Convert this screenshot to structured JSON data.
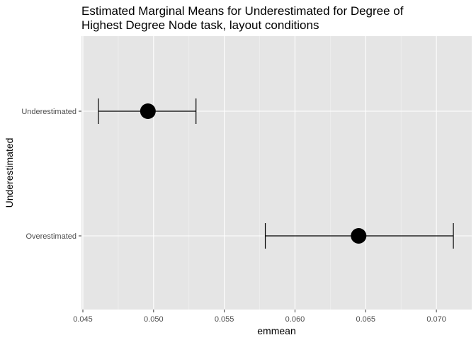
{
  "chart_data": {
    "type": "scatter",
    "title_lines": [
      "Estimated Marginal Means for Underestimated for Degree of",
      "Highest Degree Node task, layout conditions"
    ],
    "xlabel": "emmean",
    "ylabel": "Underestimated",
    "xlim": [
      0.0449,
      0.0725
    ],
    "x_ticks": [
      0.045,
      0.05,
      0.055,
      0.06,
      0.065,
      0.07
    ],
    "x_tick_labels": [
      "0.045",
      "0.050",
      "0.055",
      "0.060",
      "0.065",
      "0.070"
    ],
    "categories": [
      "Underestimated",
      "Overestimated"
    ],
    "grid": true,
    "points": [
      {
        "category": "Underestimated",
        "emmean": 0.0496,
        "lower": 0.0461,
        "upper": 0.053
      },
      {
        "category": "Overestimated",
        "emmean": 0.0645,
        "lower": 0.0579,
        "upper": 0.0712
      }
    ],
    "colors": {
      "panel_background": "#e5e5e5",
      "grid_major": "#ffffff",
      "grid_minor": "#f2f2f2",
      "point": "#000000",
      "errorbar": "#000000"
    }
  }
}
